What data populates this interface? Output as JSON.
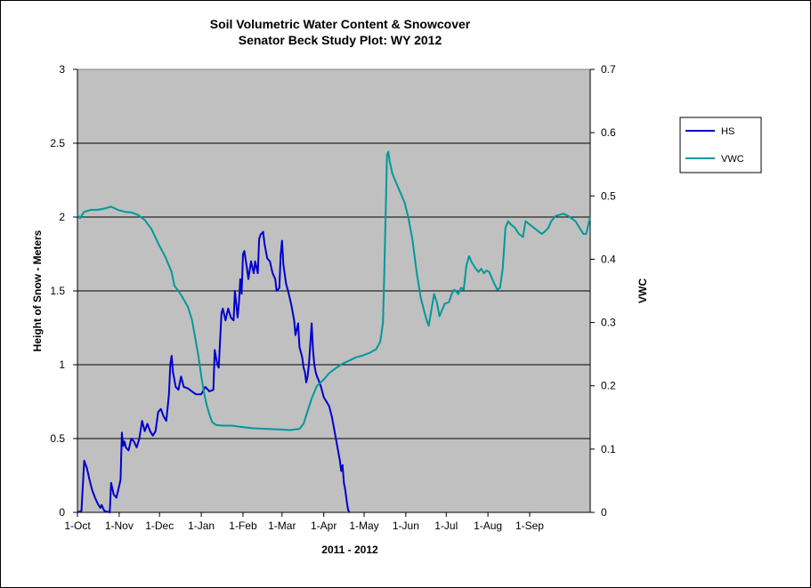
{
  "chart_data": {
    "type": "line",
    "title": "Soil Volumetric Water Content & Snowcover",
    "subtitle": "Senator Beck Study Plot: WY 2012",
    "xlabel": "2011  -  2012",
    "ylabel": "Height of Snow - Meters",
    "y2label": "VWC",
    "x_ticks": [
      "1-Oct",
      "1-Nov",
      "1-Dec",
      "1-Jan",
      "1-Feb",
      "1-Mar",
      "1-Apr",
      "1-May",
      "1-Jun",
      "1-Jul",
      "1-Aug",
      "1-Sep"
    ],
    "x_tick_days": [
      0,
      31,
      61,
      92,
      123,
      152,
      183,
      213,
      244,
      274,
      305,
      336
    ],
    "xlim_days": [
      0,
      381
    ],
    "ylim": [
      0,
      3
    ],
    "y_ticks": [
      "0",
      "0.5",
      "1",
      "1.5",
      "2",
      "2.5",
      "3"
    ],
    "y2lim": [
      0,
      0.7
    ],
    "y2_ticks": [
      "0",
      "0.1",
      "0.2",
      "0.3",
      "0.4",
      "0.5",
      "0.6",
      "0.7"
    ],
    "grid": "horizontal",
    "plot_background": "#c0c0c0",
    "legend_position": "right",
    "series": [
      {
        "name": "HS",
        "axis": "left",
        "color": "#0000cc",
        "points": [
          [
            0,
            0
          ],
          [
            3,
            0.01
          ],
          [
            5,
            0.35
          ],
          [
            7,
            0.3
          ],
          [
            9,
            0.22
          ],
          [
            11,
            0.15
          ],
          [
            13,
            0.1
          ],
          [
            15,
            0.06
          ],
          [
            17,
            0.03
          ],
          [
            18,
            0.05
          ],
          [
            20,
            0.01
          ],
          [
            24,
            0
          ],
          [
            25,
            0.2
          ],
          [
            27,
            0.12
          ],
          [
            29,
            0.1
          ],
          [
            31,
            0.18
          ],
          [
            32,
            0.22
          ],
          [
            33,
            0.54
          ],
          [
            34,
            0.45
          ],
          [
            35,
            0.48
          ],
          [
            36,
            0.44
          ],
          [
            38,
            0.42
          ],
          [
            40,
            0.5
          ],
          [
            42,
            0.48
          ],
          [
            44,
            0.44
          ],
          [
            46,
            0.5
          ],
          [
            48,
            0.62
          ],
          [
            50,
            0.55
          ],
          [
            52,
            0.6
          ],
          [
            54,
            0.55
          ],
          [
            56,
            0.52
          ],
          [
            58,
            0.55
          ],
          [
            60,
            0.68
          ],
          [
            62,
            0.7
          ],
          [
            64,
            0.65
          ],
          [
            66,
            0.62
          ],
          [
            68,
            0.8
          ],
          [
            69,
            1.0
          ],
          [
            70,
            1.06
          ],
          [
            71,
            0.95
          ],
          [
            73,
            0.85
          ],
          [
            75,
            0.83
          ],
          [
            77,
            0.92
          ],
          [
            79,
            0.85
          ],
          [
            82,
            0.84
          ],
          [
            85,
            0.82
          ],
          [
            88,
            0.8
          ],
          [
            92,
            0.8
          ],
          [
            95,
            0.85
          ],
          [
            98,
            0.82
          ],
          [
            101,
            0.83
          ],
          [
            102,
            1.1
          ],
          [
            104,
            1.0
          ],
          [
            105,
            0.98
          ],
          [
            107,
            1.35
          ],
          [
            108,
            1.38
          ],
          [
            110,
            1.3
          ],
          [
            112,
            1.38
          ],
          [
            114,
            1.32
          ],
          [
            116,
            1.3
          ],
          [
            117,
            1.5
          ],
          [
            119,
            1.32
          ],
          [
            120,
            1.42
          ],
          [
            121,
            1.58
          ],
          [
            122,
            1.48
          ],
          [
            123,
            1.75
          ],
          [
            124,
            1.77
          ],
          [
            126,
            1.65
          ],
          [
            127,
            1.58
          ],
          [
            129,
            1.7
          ],
          [
            131,
            1.62
          ],
          [
            132,
            1.7
          ],
          [
            134,
            1.62
          ],
          [
            135,
            1.85
          ],
          [
            136,
            1.88
          ],
          [
            138,
            1.9
          ],
          [
            139,
            1.82
          ],
          [
            141,
            1.72
          ],
          [
            143,
            1.7
          ],
          [
            145,
            1.62
          ],
          [
            147,
            1.58
          ],
          [
            148,
            1.5
          ],
          [
            150,
            1.52
          ],
          [
            151,
            1.75
          ],
          [
            152,
            1.84
          ],
          [
            153,
            1.68
          ],
          [
            155,
            1.55
          ],
          [
            157,
            1.48
          ],
          [
            159,
            1.4
          ],
          [
            161,
            1.3
          ],
          [
            162,
            1.2
          ],
          [
            164,
            1.28
          ],
          [
            165,
            1.12
          ],
          [
            167,
            1.05
          ],
          [
            168,
            0.98
          ],
          [
            169,
            0.95
          ],
          [
            170,
            0.88
          ],
          [
            171,
            0.92
          ],
          [
            172,
            1.0
          ],
          [
            174,
            1.28
          ],
          [
            175,
            1.1
          ],
          [
            176,
            1.0
          ],
          [
            177,
            0.95
          ],
          [
            178,
            0.92
          ],
          [
            179,
            0.9
          ],
          [
            181,
            0.85
          ],
          [
            183,
            0.78
          ],
          [
            185,
            0.75
          ],
          [
            187,
            0.72
          ],
          [
            189,
            0.65
          ],
          [
            191,
            0.55
          ],
          [
            193,
            0.45
          ],
          [
            195,
            0.35
          ],
          [
            196,
            0.28
          ],
          [
            197,
            0.32
          ],
          [
            198,
            0.2
          ],
          [
            199,
            0.15
          ],
          [
            200,
            0.08
          ],
          [
            201,
            0.02
          ],
          [
            202,
            0
          ]
        ]
      },
      {
        "name": "VWC",
        "axis": "right",
        "color": "#009999",
        "points": [
          [
            0,
            0.47
          ],
          [
            2,
            0.465
          ],
          [
            5,
            0.475
          ],
          [
            10,
            0.478
          ],
          [
            15,
            0.478
          ],
          [
            20,
            0.48
          ],
          [
            25,
            0.483
          ],
          [
            30,
            0.478
          ],
          [
            35,
            0.475
          ],
          [
            40,
            0.474
          ],
          [
            45,
            0.47
          ],
          [
            50,
            0.462
          ],
          [
            55,
            0.448
          ],
          [
            60,
            0.425
          ],
          [
            65,
            0.405
          ],
          [
            70,
            0.38
          ],
          [
            72,
            0.358
          ],
          [
            75,
            0.35
          ],
          [
            78,
            0.34
          ],
          [
            82,
            0.325
          ],
          [
            85,
            0.305
          ],
          [
            88,
            0.27
          ],
          [
            90,
            0.245
          ],
          [
            92,
            0.215
          ],
          [
            94,
            0.19
          ],
          [
            96,
            0.17
          ],
          [
            98,
            0.155
          ],
          [
            100,
            0.143
          ],
          [
            103,
            0.138
          ],
          [
            108,
            0.137
          ],
          [
            115,
            0.137
          ],
          [
            122,
            0.135
          ],
          [
            130,
            0.133
          ],
          [
            140,
            0.132
          ],
          [
            150,
            0.131
          ],
          [
            158,
            0.13
          ],
          [
            165,
            0.132
          ],
          [
            168,
            0.14
          ],
          [
            171,
            0.16
          ],
          [
            174,
            0.18
          ],
          [
            178,
            0.2
          ],
          [
            183,
            0.21
          ],
          [
            187,
            0.22
          ],
          [
            192,
            0.228
          ],
          [
            197,
            0.235
          ],
          [
            202,
            0.24
          ],
          [
            207,
            0.245
          ],
          [
            212,
            0.248
          ],
          [
            217,
            0.252
          ],
          [
            222,
            0.258
          ],
          [
            225,
            0.27
          ],
          [
            227,
            0.3
          ],
          [
            228,
            0.38
          ],
          [
            229,
            0.47
          ],
          [
            230,
            0.565
          ],
          [
            231,
            0.57
          ],
          [
            232,
            0.555
          ],
          [
            234,
            0.535
          ],
          [
            237,
            0.52
          ],
          [
            240,
            0.505
          ],
          [
            243,
            0.49
          ],
          [
            246,
            0.465
          ],
          [
            249,
            0.43
          ],
          [
            252,
            0.38
          ],
          [
            255,
            0.34
          ],
          [
            258,
            0.315
          ],
          [
            260,
            0.3
          ],
          [
            261,
            0.295
          ],
          [
            263,
            0.32
          ],
          [
            265,
            0.345
          ],
          [
            267,
            0.332
          ],
          [
            269,
            0.31
          ],
          [
            271,
            0.32
          ],
          [
            273,
            0.33
          ],
          [
            276,
            0.332
          ],
          [
            278,
            0.345
          ],
          [
            280,
            0.352
          ],
          [
            283,
            0.345
          ],
          [
            285,
            0.355
          ],
          [
            287,
            0.352
          ],
          [
            289,
            0.39
          ],
          [
            291,
            0.405
          ],
          [
            293,
            0.395
          ],
          [
            296,
            0.385
          ],
          [
            298,
            0.38
          ],
          [
            300,
            0.385
          ],
          [
            302,
            0.378
          ],
          [
            304,
            0.382
          ],
          [
            306,
            0.38
          ],
          [
            308,
            0.37
          ],
          [
            310,
            0.36
          ],
          [
            312,
            0.352
          ],
          [
            314,
            0.355
          ],
          [
            316,
            0.385
          ],
          [
            318,
            0.45
          ],
          [
            320,
            0.46
          ],
          [
            322,
            0.455
          ],
          [
            325,
            0.45
          ],
          [
            328,
            0.44
          ],
          [
            331,
            0.435
          ],
          [
            333,
            0.46
          ],
          [
            336,
            0.455
          ],
          [
            339,
            0.45
          ],
          [
            342,
            0.445
          ],
          [
            345,
            0.44
          ],
          [
            348,
            0.445
          ],
          [
            350,
            0.45
          ],
          [
            352,
            0.46
          ],
          [
            355,
            0.468
          ],
          [
            358,
            0.47
          ],
          [
            361,
            0.472
          ],
          [
            365,
            0.468
          ],
          [
            370,
            0.46
          ],
          [
            373,
            0.45
          ],
          [
            376,
            0.44
          ],
          [
            378,
            0.44
          ],
          [
            381,
            0.467
          ]
        ]
      }
    ]
  }
}
